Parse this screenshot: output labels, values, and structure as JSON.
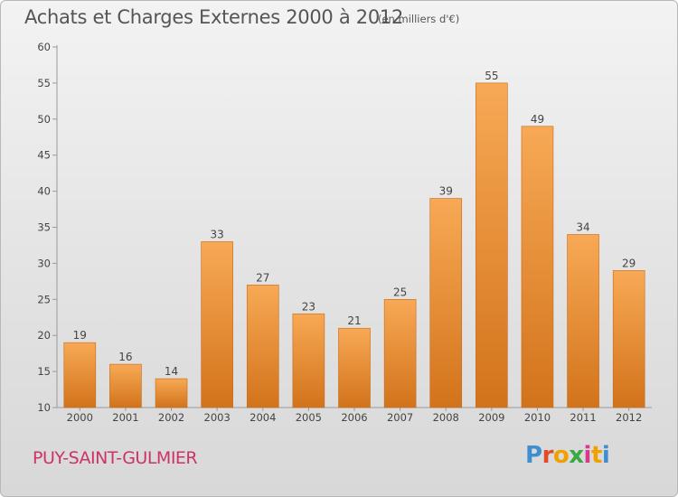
{
  "chart_data": {
    "type": "bar",
    "title": "Achats et Charges Externes 2000 à 2012",
    "subtitle": "(en milliers d'€)",
    "categories": [
      "2000",
      "2001",
      "2002",
      "2003",
      "2004",
      "2005",
      "2006",
      "2007",
      "2008",
      "2009",
      "2010",
      "2011",
      "2012"
    ],
    "values": [
      19,
      16,
      14,
      33,
      27,
      23,
      21,
      25,
      39,
      55,
      49,
      34,
      29
    ],
    "ylim": [
      10,
      60
    ],
    "yticks": [
      "10",
      "15",
      "20",
      "25",
      "30",
      "35",
      "40",
      "45",
      "50",
      "55",
      "60"
    ],
    "grid": false,
    "colors": {
      "bar_top": "#f8a955",
      "bar_bottom": "#d2731b",
      "bar_edge": "#c8691a"
    }
  },
  "footer": {
    "commune": "PUY-SAINT-GULMIER",
    "logo_letters": [
      "P",
      "r",
      "o",
      "x",
      "i",
      "t",
      "i"
    ],
    "logo_colors": [
      "#3f8fd0",
      "#e24a2a",
      "#f0a000",
      "#3aa845",
      "#d63a8a",
      "#f0a000",
      "#3f8fd0"
    ]
  }
}
